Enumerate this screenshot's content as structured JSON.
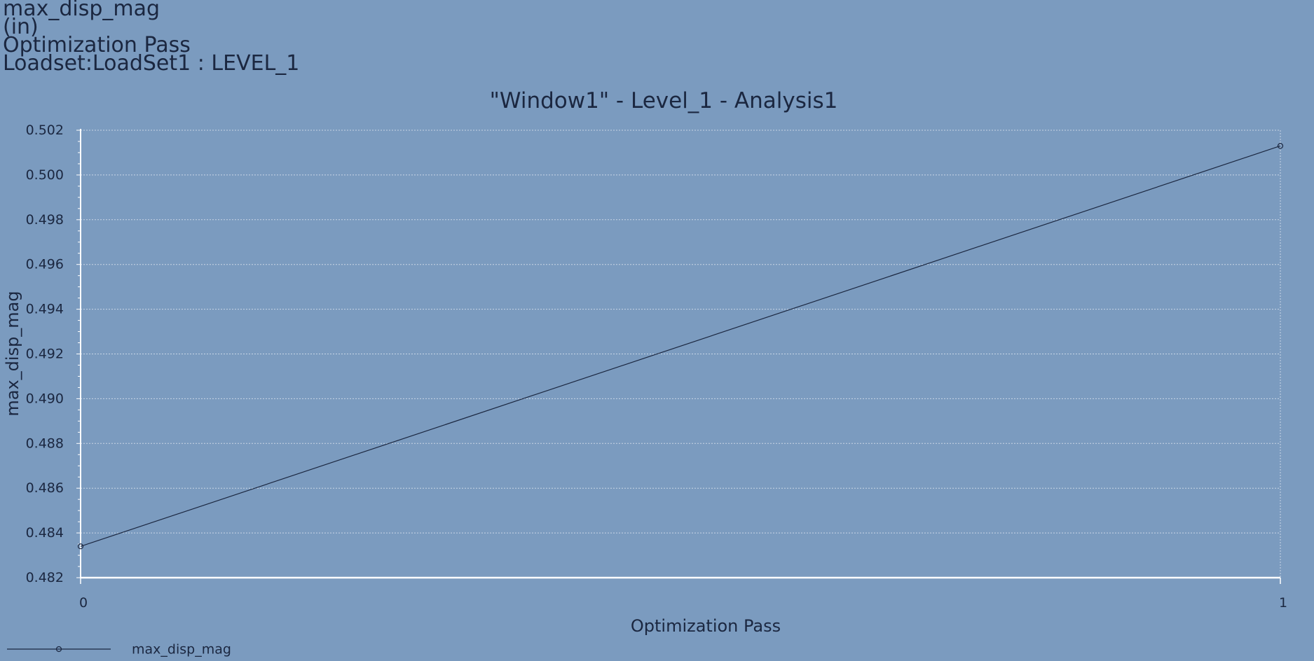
{
  "header": {
    "lines": [
      "max_disp_mag",
      "(in)",
      "Optimization Pass",
      "Loadset:LoadSet1 :  LEVEL_1"
    ]
  },
  "colors": {
    "background": "#7b9bbf",
    "line": "#1b2740",
    "axis": "#ffffff",
    "grid": "#c9d6e6",
    "text": "#1b2740"
  },
  "chart_data": {
    "type": "line",
    "title": "\"Window1\" - Level_1 - Analysis1",
    "xlabel": "Optimization Pass",
    "ylabel": "max_disp_mag",
    "x": [
      0,
      1
    ],
    "xlim": [
      0,
      1
    ],
    "xticks": [
      "0",
      "1"
    ],
    "ylim": [
      0.482,
      0.502
    ],
    "yticks": [
      "0.482",
      "0.484",
      "0.486",
      "0.488",
      "0.490",
      "0.492",
      "0.494",
      "0.496",
      "0.498",
      "0.500",
      "0.502"
    ],
    "grid": true,
    "legend_position": "bottom-left",
    "series": [
      {
        "name": "max_disp_mag",
        "values": [
          0.4834,
          0.5013
        ],
        "marker": "circle"
      }
    ]
  }
}
